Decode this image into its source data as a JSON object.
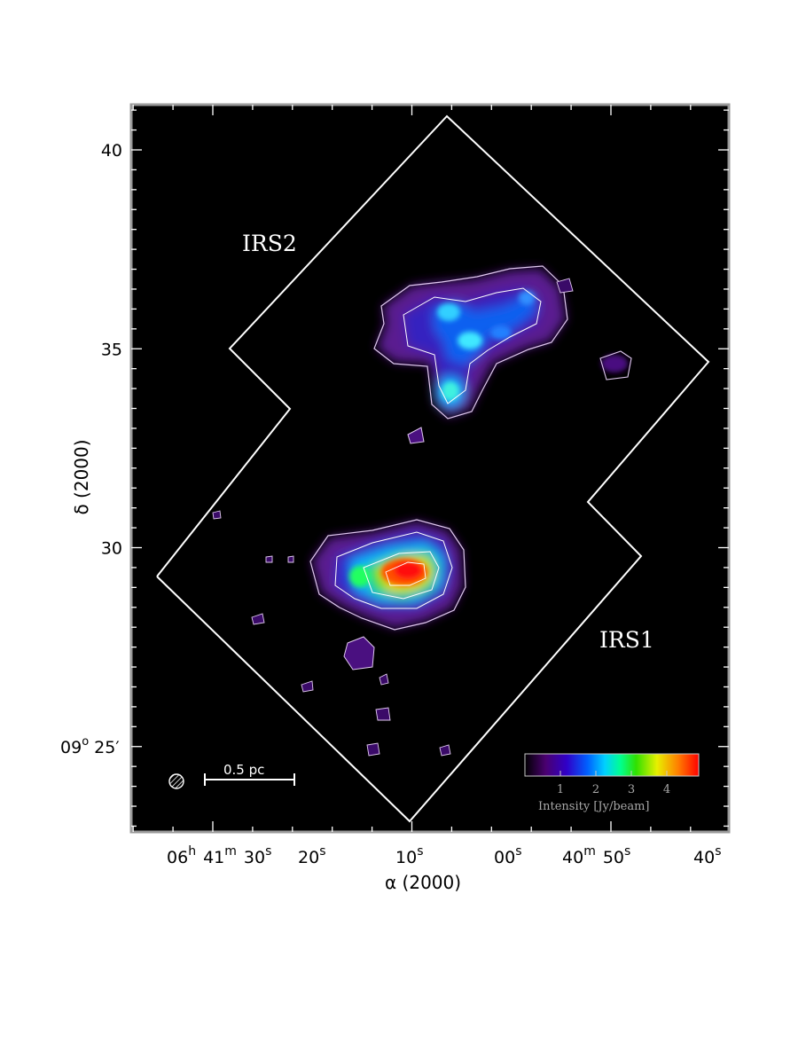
{
  "chart_data": {
    "type": "heatmap",
    "title": "",
    "xlabel": "α (2000)",
    "ylabel": "δ (2000)",
    "xlim": [
      26,
      -43
    ],
    "ylim": [
      23.0,
      41.0
    ],
    "x_ticks": [
      {
        "value": 20,
        "main": "06",
        "sup": "h",
        "extra": [
          {
            "t": "41",
            "sup": "m"
          },
          {
            "t": "30",
            "sup": "s"
          }
        ]
      },
      {
        "value": 10,
        "main": "20",
        "sup": "s"
      },
      {
        "value": 0,
        "main": "10",
        "sup": "s"
      },
      {
        "value": -10,
        "main": "00",
        "sup": "s"
      },
      {
        "value": -20,
        "main": "40",
        "sup": "m",
        "extra": [
          {
            "t": "50",
            "sup": "s"
          }
        ]
      },
      {
        "value": -30,
        "main": "40",
        "sup": "s"
      }
    ],
    "y_ticks": [
      {
        "value": 40,
        "label": "40"
      },
      {
        "value": 35,
        "label": "35"
      },
      {
        "value": 30,
        "label": "30"
      },
      {
        "value": 25,
        "label": "25′",
        "prefix": "09",
        "prefix_sup": "o"
      }
    ],
    "region_labels": [
      {
        "text": "IRS2",
        "x": 17.5,
        "y": 37.0
      },
      {
        "text": "IRS1",
        "x": -26.0,
        "y": 27.0
      }
    ],
    "coverage_outline": [
      [
        0.1,
        40.85
      ],
      [
        -28.2,
        34.65
      ],
      [
        -20.0,
        29.85
      ],
      [
        -26.8,
        31.15
      ],
      [
        -21.4,
        33.9
      ],
      [
        -9.8,
        38.95
      ],
      [
        0.1,
        40.85
      ]
    ],
    "coverage_outline_full": [
      [
        -4.2,
        40.85
      ],
      [
        -32.5,
        34.65
      ],
      [
        -24.2,
        29.85
      ],
      [
        -30.3,
        31.15
      ],
      [
        -18.3,
        33.9
      ],
      [
        1.4,
        23.2
      ],
      [
        25.6,
        29.35
      ],
      [
        12.3,
        33.5
      ],
      [
        18.3,
        34.95
      ],
      [
        -4.2,
        40.85
      ]
    ],
    "sources": [
      {
        "name": "IRS2",
        "peaks": [
          {
            "x": -13.6,
            "y": 35.9,
            "intensity": 1.6
          },
          {
            "x": -4.5,
            "y": 35.3,
            "intensity": 1.7
          },
          {
            "x": -6.8,
            "y": 34.0,
            "intensity": 1.9
          },
          {
            "x": -19.0,
            "y": 36.3,
            "intensity": 1.5
          }
        ]
      },
      {
        "name": "IRS1",
        "peaks": [
          {
            "x": -0.6,
            "y": 29.4,
            "intensity": 4.6
          },
          {
            "x": 7.7,
            "y": 29.3,
            "intensity": 2.9
          }
        ]
      }
    ],
    "colorbar": {
      "label": "Intensity [Jy/beam]",
      "ticks": [
        1,
        2,
        3,
        4
      ],
      "range": [
        0,
        4.9
      ],
      "colors": [
        "#000000",
        "#5a0078",
        "#3a00c8",
        "#0050ff",
        "#00c0ff",
        "#00ff9a",
        "#30e000",
        "#e0f000",
        "#ff9000",
        "#ff0000"
      ]
    },
    "scale_bar_label": "0.5 pc",
    "grid": false,
    "legend": "none"
  }
}
